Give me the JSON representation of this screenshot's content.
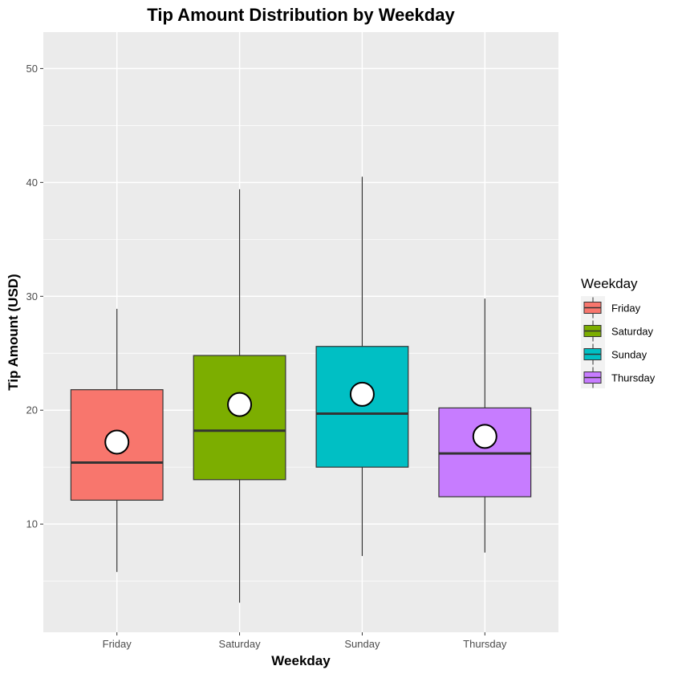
{
  "chart_data": {
    "type": "box",
    "title": "Tip Amount Distribution by Weekday",
    "xlabel": "Weekday",
    "ylabel": "Tip Amount (USD)",
    "ylim": [
      0.5,
      53.2
    ],
    "yticks": [
      10,
      20,
      30,
      40,
      50
    ],
    "grid": true,
    "legend": {
      "title": "Weekday",
      "position": "right"
    },
    "categories": [
      "Friday",
      "Saturday",
      "Sunday",
      "Thursday"
    ],
    "series": [
      {
        "name": "Friday",
        "color": "#F8766D",
        "min": 5.8,
        "q1": 12.1,
        "median": 15.4,
        "q3": 21.8,
        "max": 28.9,
        "mean": 17.2
      },
      {
        "name": "Saturday",
        "color": "#7CAE00",
        "min": 3.1,
        "q1": 13.9,
        "median": 18.2,
        "q3": 24.8,
        "max": 39.4,
        "mean": 20.5
      },
      {
        "name": "Sunday",
        "color": "#00BFC4",
        "min": 7.2,
        "q1": 15.0,
        "median": 19.7,
        "q3": 25.6,
        "max": 40.5,
        "mean": 21.4
      },
      {
        "name": "Thursday",
        "color": "#C77CFF",
        "min": 7.5,
        "q1": 12.4,
        "median": 16.2,
        "q3": 20.2,
        "max": 29.8,
        "mean": 17.7
      }
    ]
  }
}
